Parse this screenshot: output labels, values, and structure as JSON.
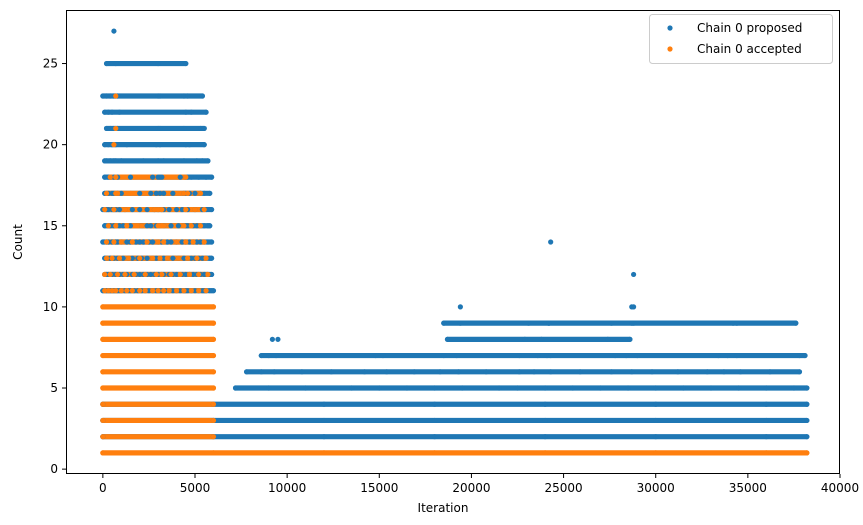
{
  "chart_data": {
    "type": "scatter",
    "title": "",
    "xlabel": "Iteration",
    "ylabel": "Count",
    "xlim": [
      -2000,
      40000
    ],
    "ylim": [
      -0.3,
      28.3
    ],
    "xticks": [
      0,
      5000,
      10000,
      15000,
      20000,
      25000,
      30000,
      35000,
      40000
    ],
    "yticks": [
      0,
      5,
      10,
      15,
      20,
      25
    ],
    "grid": false,
    "legend_position": "top-right",
    "series": [
      {
        "name": "Chain 0 proposed",
        "color": "#1f77b4",
        "x": [
          0,
          6000,
          12000,
          18000,
          24000,
          30000,
          36000,
          38200,
          0,
          6000,
          12000,
          18000,
          24000,
          30000,
          36000,
          38200,
          0,
          6000,
          12000,
          18000,
          24000,
          30000,
          36000,
          38200,
          7200,
          9000,
          11000,
          13500,
          15000,
          16500,
          18000,
          19500,
          21500,
          22500,
          24000,
          25500,
          27000,
          28500,
          30000,
          31500,
          33000,
          34500,
          36000,
          37500,
          38200,
          7800,
          8600,
          9300,
          10800,
          12400,
          14200,
          15400,
          16900,
          18300,
          19300,
          20800,
          22600,
          23400,
          24300,
          25900,
          27600,
          28700,
          29800,
          31200,
          32800,
          33700,
          34600,
          36200,
          37800,
          8600,
          9000,
          9400,
          14800,
          15200,
          18500,
          19200,
          22600,
          23600,
          24100,
          24300,
          27800,
          28400,
          29000,
          33400,
          33900,
          34400,
          37800,
          38100,
          9200,
          9500,
          18700,
          22900,
          23800,
          27400,
          28600,
          18500,
          19400,
          23100,
          24200,
          28800,
          37600,
          24200,
          27600,
          28700,
          34200,
          34400,
          19400,
          28700,
          28800,
          28800,
          24300,
          0,
          200,
          300,
          400,
          500,
          600,
          700,
          800,
          900,
          1000,
          1200,
          1400,
          1500,
          1700,
          1900,
          2100,
          2300,
          2500,
          2700,
          2900,
          3000,
          3100,
          3200,
          3400,
          3600,
          3800,
          4000,
          4200,
          4400,
          4500,
          4600,
          4800,
          5000,
          5200,
          5400,
          5500,
          5600,
          5800,
          5900,
          6000,
          100,
          200,
          300,
          500,
          700,
          900,
          1100,
          1300,
          1600,
          1800,
          2000,
          2200,
          2400,
          2600,
          2800,
          3000,
          3200,
          3300,
          3600,
          3800,
          4000,
          4300,
          4500,
          4700,
          4900,
          5100,
          5300,
          5500,
          5700,
          5900,
          100,
          200,
          400,
          600,
          800,
          900,
          1100,
          1400,
          1600,
          1900,
          2100,
          2400,
          2700,
          2900,
          3100,
          3300,
          3500,
          3800,
          4100,
          4400,
          4600,
          4800,
          5000,
          5200,
          5400,
          5600,
          5800,
          5900,
          0,
          200,
          300,
          500,
          700,
          800,
          1000,
          1300,
          1500,
          1800,
          2000,
          2200,
          2500,
          2700,
          3000,
          3200,
          3500,
          3700,
          4000,
          4300,
          4500,
          4700,
          4900,
          5100,
          5300,
          5500,
          5700,
          5900,
          100,
          300,
          400,
          600,
          900,
          1100,
          1500,
          2100,
          2400,
          2600,
          2900,
          3000,
          3100,
          3300,
          3700,
          4100,
          4400,
          4500,
          4600,
          4900,
          5100,
          5300,
          5500,
          5700,
          5800,
          0,
          200,
          300,
          500,
          600,
          700,
          900,
          1200,
          1600,
          2000,
          2400,
          2800,
          3000,
          3200,
          3300,
          3600,
          4000,
          4300,
          4600,
          5000,
          5400,
          5600,
          5900,
          100,
          300,
          500,
          600,
          800,
          1000,
          2000,
          2600,
          2900,
          3100,
          3300,
          3800,
          4400,
          4500,
          4700,
          5000,
          5300,
          5500,
          5800,
          100,
          300,
          400,
          600,
          800,
          1500,
          2700,
          3000,
          3100,
          3200,
          4200,
          4500,
          4600,
          4800,
          5200,
          5600,
          5900,
          100,
          200,
          400,
          600,
          700,
          1000,
          2200,
          3000,
          3300,
          4400,
          5100,
          5400,
          5700,
          100,
          300,
          500,
          700,
          1300,
          2900,
          3100,
          4500,
          4700,
          5500,
          200,
          400,
          600,
          800,
          3000,
          3100,
          4400,
          5300,
          5500,
          100,
          300,
          500,
          900,
          4500,
          4800,
          5600,
          0,
          200,
          400,
          600,
          700,
          800,
          3000,
          3100,
          4400,
          4600,
          5400,
          600,
          200,
          3000,
          4500,
          700
        ],
        "y": [
          2,
          2,
          2,
          2,
          2,
          2,
          2,
          2,
          3,
          3,
          3,
          3,
          3,
          3,
          3,
          3,
          4,
          4,
          4,
          4,
          4,
          4,
          4,
          4,
          5,
          5,
          5,
          5,
          5,
          5,
          5,
          5,
          5,
          5,
          5,
          5,
          5,
          5,
          5,
          5,
          5,
          5,
          5,
          5,
          5,
          6,
          6,
          6,
          6,
          6,
          6,
          6,
          6,
          6,
          6,
          6,
          6,
          6,
          6,
          6,
          6,
          6,
          6,
          6,
          6,
          6,
          6,
          6,
          6,
          7,
          7,
          7,
          7,
          7,
          7,
          7,
          7,
          7,
          7,
          7,
          7,
          7,
          7,
          7,
          7,
          7,
          7,
          7,
          8,
          8,
          8,
          8,
          8,
          8,
          8,
          9,
          9,
          9,
          9,
          9,
          9,
          9,
          9,
          9,
          9,
          9,
          10,
          10,
          10,
          12,
          14,
          11,
          11,
          11,
          11,
          11,
          11,
          11,
          11,
          11,
          11,
          11,
          11,
          11,
          11,
          11,
          11,
          11,
          11,
          11,
          11,
          11,
          11,
          11,
          11,
          11,
          11,
          11,
          11,
          11,
          11,
          11,
          11,
          11,
          11,
          11,
          11,
          11,
          11,
          11,
          11,
          12,
          12,
          12,
          12,
          12,
          12,
          12,
          12,
          12,
          12,
          12,
          12,
          12,
          12,
          12,
          12,
          12,
          12,
          12,
          12,
          12,
          12,
          12,
          12,
          12,
          12,
          12,
          12,
          12,
          12,
          13,
          13,
          13,
          13,
          13,
          13,
          13,
          13,
          13,
          13,
          13,
          13,
          13,
          13,
          13,
          13,
          13,
          13,
          13,
          13,
          13,
          13,
          13,
          13,
          13,
          13,
          13,
          13,
          14,
          14,
          14,
          14,
          14,
          14,
          14,
          14,
          14,
          14,
          14,
          14,
          14,
          14,
          14,
          14,
          14,
          14,
          14,
          14,
          14,
          14,
          14,
          14,
          14,
          14,
          14,
          14,
          15,
          15,
          15,
          15,
          15,
          15,
          15,
          15,
          15,
          15,
          15,
          15,
          15,
          15,
          15,
          15,
          15,
          15,
          15,
          15,
          15,
          15,
          15,
          15,
          15,
          16,
          16,
          16,
          16,
          16,
          16,
          16,
          16,
          16,
          16,
          16,
          16,
          16,
          16,
          16,
          16,
          16,
          16,
          16,
          16,
          16,
          16,
          16,
          17,
          17,
          17,
          17,
          17,
          17,
          17,
          17,
          17,
          17,
          17,
          17,
          17,
          17,
          17,
          17,
          17,
          17,
          17,
          18,
          18,
          18,
          18,
          18,
          18,
          18,
          18,
          18,
          18,
          18,
          18,
          18,
          18,
          18,
          18,
          18,
          19,
          19,
          19,
          19,
          19,
          19,
          19,
          19,
          19,
          19,
          19,
          19,
          19,
          20,
          20,
          20,
          20,
          20,
          20,
          20,
          20,
          20,
          20,
          21,
          21,
          21,
          21,
          21,
          21,
          21,
          21,
          21,
          22,
          22,
          22,
          22,
          22,
          22,
          22,
          23,
          23,
          23,
          23,
          23,
          23,
          23,
          23,
          23,
          23,
          23,
          27,
          25,
          25,
          25,
          25
        ]
      },
      {
        "name": "Chain 0 accepted",
        "color": "#ff7f0e",
        "x": [
          0,
          6000,
          12000,
          18000,
          24000,
          30000,
          36000,
          38200,
          0,
          6000,
          0,
          6000,
          0,
          6000,
          0,
          6000,
          0,
          6000,
          0,
          6000,
          0,
          6000,
          0,
          6000,
          0,
          6000,
          100,
          300,
          500,
          700,
          1000,
          1300,
          1600,
          2000,
          2300,
          2700,
          3000,
          3300,
          3600,
          4000,
          4400,
          4800,
          5200,
          5600,
          100,
          400,
          800,
          1200,
          1700,
          2300,
          2900,
          3200,
          3700,
          4200,
          4700,
          5200,
          5700,
          200,
          500,
          900,
          1400,
          2000,
          2700,
          3100,
          3500,
          4100,
          4600,
          5100,
          5600,
          200,
          600,
          1000,
          1600,
          2400,
          3000,
          3300,
          4000,
          4500,
          4900,
          5500,
          300,
          700,
          1300,
          2100,
          3000,
          3100,
          3200,
          3300,
          4400,
          4800,
          5300,
          100,
          600,
          1200,
          2800,
          3000,
          3200,
          4500,
          5000,
          5500,
          200,
          700,
          800,
          1500,
          4400,
          4600,
          5300,
          400,
          700,
          4500,
          600,
          700,
          700
        ],
        "y": [
          1,
          1,
          1,
          1,
          1,
          1,
          1,
          1,
          2,
          2,
          3,
          3,
          4,
          4,
          5,
          5,
          6,
          6,
          7,
          7,
          8,
          8,
          9,
          9,
          10,
          10,
          11,
          11,
          11,
          11,
          11,
          11,
          11,
          11,
          11,
          11,
          11,
          11,
          11,
          11,
          11,
          11,
          11,
          11,
          12,
          12,
          12,
          12,
          12,
          12,
          12,
          12,
          12,
          12,
          12,
          12,
          12,
          13,
          13,
          13,
          13,
          13,
          13,
          13,
          13,
          13,
          13,
          13,
          13,
          14,
          14,
          14,
          14,
          14,
          14,
          14,
          14,
          14,
          14,
          14,
          15,
          15,
          15,
          15,
          15,
          15,
          15,
          15,
          15,
          15,
          15,
          16,
          16,
          16,
          16,
          16,
          16,
          16,
          16,
          16,
          17,
          17,
          17,
          17,
          17,
          17,
          17,
          18,
          18,
          18,
          20,
          21,
          23
        ]
      }
    ]
  }
}
